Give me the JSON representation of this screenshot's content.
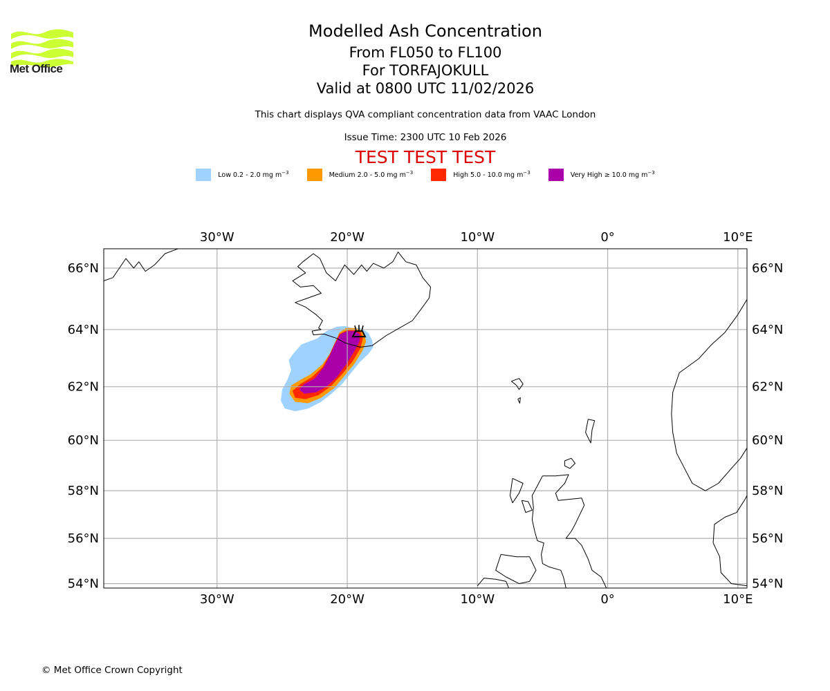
{
  "logo": {
    "text": "Met Office",
    "wave_color": "#ccff33"
  },
  "header": {
    "title": "Modelled Ash Concentration",
    "levels": "From FL050 to FL100",
    "volcano": "For TORFAJOKULL",
    "valid": "Valid at 0800 UTC 11/02/2026",
    "subtitle": "This chart displays QVA compliant concentration data from VAAC London",
    "issue_time": "Issue Time: 2300 UTC 10 Feb 2026",
    "test_banner": "TEST TEST TEST",
    "test_color": "#dd0000"
  },
  "legend": [
    {
      "label": "Low 0.2 - 2.0 mg m",
      "unit_exp": "−3",
      "color": "#a0d2ff"
    },
    {
      "label": "Medium 2.0 - 5.0 mg m",
      "unit_exp": "−3",
      "color": "#ff9900"
    },
    {
      "label": "High 5.0 - 10.0 mg m",
      "unit_exp": "−3",
      "color": "#ff2800"
    },
    {
      "label": "Very High  ≥  10.0 mg m",
      "unit_exp": "−3",
      "color": "#aa00aa"
    }
  ],
  "footer": {
    "copyright": "© Met Office Crown Copyright"
  },
  "chart_data": {
    "type": "heatmap",
    "projection": "mercator",
    "extent": {
      "lon": [
        -38.7,
        10.7
      ],
      "lat": [
        53.8,
        66.6
      ]
    },
    "grid": true,
    "x_ticks": [
      {
        "value": -30,
        "label": "30°W"
      },
      {
        "value": -20,
        "label": "20°W"
      },
      {
        "value": -10,
        "label": "10°W"
      },
      {
        "value": 0,
        "label": "0°"
      },
      {
        "value": 10,
        "label": "10°E"
      }
    ],
    "y_ticks": [
      {
        "value": 66,
        "label": "66°N"
      },
      {
        "value": 64,
        "label": "64°N"
      },
      {
        "value": 62,
        "label": "62°N"
      },
      {
        "value": 60,
        "label": "60°N"
      },
      {
        "value": 58,
        "label": "58°N"
      },
      {
        "value": 56,
        "label": "56°N"
      },
      {
        "value": 54,
        "label": "54°N"
      }
    ],
    "volcano": {
      "name": "TORFAJOKULL",
      "lon": -19.1,
      "lat": 63.9,
      "symbol": "volcano-icon"
    },
    "ash_levels": [
      {
        "level": "Low",
        "range": "0.2 - 2.0 mg m-3",
        "color": "#a0d2ff",
        "polygon": [
          [
            -19.6,
            64.05
          ],
          [
            -19.0,
            64.05
          ],
          [
            -18.4,
            63.9
          ],
          [
            -18.1,
            63.65
          ],
          [
            -18.0,
            63.4
          ],
          [
            -18.4,
            63.15
          ],
          [
            -19.0,
            62.9
          ],
          [
            -19.7,
            62.5
          ],
          [
            -20.4,
            62.1
          ],
          [
            -21.2,
            61.75
          ],
          [
            -22.0,
            61.45
          ],
          [
            -23.0,
            61.2
          ],
          [
            -24.0,
            61.1
          ],
          [
            -24.8,
            61.2
          ],
          [
            -25.1,
            61.5
          ],
          [
            -25.0,
            61.9
          ],
          [
            -24.6,
            62.25
          ],
          [
            -24.3,
            62.6
          ],
          [
            -24.5,
            62.95
          ],
          [
            -24.1,
            63.2
          ],
          [
            -23.5,
            63.5
          ],
          [
            -22.3,
            63.7
          ],
          [
            -21.6,
            63.95
          ],
          [
            -20.8,
            64.1
          ],
          [
            -20.2,
            64.12
          ]
        ]
      },
      {
        "level": "Medium",
        "range": "2.0 - 5.0 mg m-3",
        "color": "#ff9900",
        "polygon": [
          [
            -19.4,
            64.05
          ],
          [
            -19.0,
            64.0
          ],
          [
            -18.7,
            63.85
          ],
          [
            -18.55,
            63.6
          ],
          [
            -18.8,
            63.3
          ],
          [
            -19.4,
            62.85
          ],
          [
            -20.2,
            62.4
          ],
          [
            -21.0,
            61.95
          ],
          [
            -22.0,
            61.6
          ],
          [
            -23.0,
            61.4
          ],
          [
            -24.0,
            61.45
          ],
          [
            -24.45,
            61.75
          ],
          [
            -24.3,
            62.05
          ],
          [
            -23.6,
            62.25
          ],
          [
            -22.8,
            62.45
          ],
          [
            -21.9,
            62.8
          ],
          [
            -21.3,
            63.2
          ],
          [
            -20.9,
            63.6
          ],
          [
            -20.6,
            63.9
          ],
          [
            -20.1,
            64.05
          ]
        ]
      },
      {
        "level": "High",
        "range": "5.0 - 10.0 mg m-3",
        "color": "#ff2800",
        "polygon": [
          [
            -19.4,
            63.98
          ],
          [
            -19.0,
            63.95
          ],
          [
            -18.8,
            63.7
          ],
          [
            -19.0,
            63.35
          ],
          [
            -19.6,
            62.9
          ],
          [
            -20.4,
            62.45
          ],
          [
            -21.3,
            62.0
          ],
          [
            -22.2,
            61.7
          ],
          [
            -23.2,
            61.55
          ],
          [
            -24.0,
            61.6
          ],
          [
            -24.2,
            61.85
          ],
          [
            -23.6,
            62.1
          ],
          [
            -22.7,
            62.35
          ],
          [
            -21.9,
            62.7
          ],
          [
            -21.4,
            63.1
          ],
          [
            -21.0,
            63.5
          ],
          [
            -20.6,
            63.85
          ],
          [
            -20.0,
            63.98
          ]
        ]
      },
      {
        "level": "Very High",
        "range": ">= 10.0 mg m-3",
        "color": "#aa00aa",
        "polygon": [
          [
            -19.4,
            63.95
          ],
          [
            -19.05,
            63.85
          ],
          [
            -19.05,
            63.6
          ],
          [
            -19.4,
            63.3
          ],
          [
            -20.0,
            62.85
          ],
          [
            -20.8,
            62.35
          ],
          [
            -21.6,
            62.0
          ],
          [
            -22.4,
            61.8
          ],
          [
            -23.3,
            61.75
          ],
          [
            -23.7,
            61.9
          ],
          [
            -23.3,
            62.1
          ],
          [
            -22.5,
            62.3
          ],
          [
            -21.8,
            62.7
          ],
          [
            -21.3,
            63.15
          ],
          [
            -20.9,
            63.55
          ],
          [
            -20.5,
            63.85
          ],
          [
            -20.0,
            63.95
          ]
        ]
      }
    ],
    "coastlines": [
      {
        "name": "iceland",
        "points": [
          [
            -22.0,
            64.0
          ],
          [
            -22.7,
            63.95
          ],
          [
            -22.6,
            63.82
          ],
          [
            -21.8,
            63.85
          ],
          [
            -20.8,
            63.7
          ],
          [
            -20.2,
            63.55
          ],
          [
            -19.0,
            63.4
          ],
          [
            -18.1,
            63.45
          ],
          [
            -17.0,
            63.8
          ],
          [
            -16.0,
            64.05
          ],
          [
            -15.0,
            64.3
          ],
          [
            -14.3,
            64.7
          ],
          [
            -13.7,
            65.05
          ],
          [
            -13.6,
            65.4
          ],
          [
            -14.2,
            65.7
          ],
          [
            -14.7,
            66.1
          ],
          [
            -15.5,
            66.2
          ],
          [
            -16.1,
            66.5
          ],
          [
            -16.5,
            66.2
          ],
          [
            -17.2,
            66.0
          ],
          [
            -18.0,
            66.15
          ],
          [
            -18.5,
            65.9
          ],
          [
            -18.9,
            66.1
          ],
          [
            -19.5,
            65.8
          ],
          [
            -20.2,
            66.1
          ],
          [
            -20.9,
            65.6
          ],
          [
            -21.6,
            65.85
          ],
          [
            -22.1,
            66.3
          ],
          [
            -22.6,
            66.45
          ],
          [
            -23.4,
            66.2
          ],
          [
            -23.8,
            66.05
          ],
          [
            -23.2,
            65.85
          ],
          [
            -24.2,
            65.6
          ],
          [
            -23.6,
            65.4
          ],
          [
            -22.6,
            65.45
          ],
          [
            -22.0,
            65.2
          ],
          [
            -23.0,
            65.05
          ],
          [
            -24.0,
            64.9
          ],
          [
            -23.2,
            64.75
          ],
          [
            -22.4,
            64.5
          ],
          [
            -21.9,
            64.3
          ],
          [
            -22.2,
            64.05
          ],
          [
            -22.0,
            64.0
          ]
        ]
      },
      {
        "name": "greenland",
        "points": [
          [
            -38.7,
            65.6
          ],
          [
            -38.0,
            65.7
          ],
          [
            -37.5,
            66.0
          ],
          [
            -37.0,
            66.3
          ],
          [
            -36.4,
            66.0
          ],
          [
            -36.0,
            66.2
          ],
          [
            -35.5,
            65.9
          ],
          [
            -34.8,
            66.1
          ],
          [
            -34.0,
            66.45
          ],
          [
            -33.0,
            66.6
          ]
        ]
      },
      {
        "name": "faroes",
        "points": [
          [
            -7.4,
            62.2
          ],
          [
            -6.8,
            62.3
          ],
          [
            -6.5,
            62.1
          ],
          [
            -6.8,
            61.9
          ],
          [
            -7.0,
            62.05
          ],
          [
            -7.4,
            62.2
          ]
        ]
      },
      {
        "name": "faroes-south",
        "points": [
          [
            -6.9,
            61.55
          ],
          [
            -6.7,
            61.6
          ],
          [
            -6.75,
            61.4
          ],
          [
            -6.9,
            61.55
          ]
        ]
      },
      {
        "name": "shetland",
        "points": [
          [
            -1.5,
            60.8
          ],
          [
            -1.0,
            60.75
          ],
          [
            -1.2,
            60.4
          ],
          [
            -1.3,
            59.9
          ],
          [
            -1.5,
            60.1
          ],
          [
            -1.7,
            60.3
          ],
          [
            -1.5,
            60.8
          ]
        ]
      },
      {
        "name": "orkney",
        "points": [
          [
            -3.3,
            59.2
          ],
          [
            -2.8,
            59.3
          ],
          [
            -2.5,
            59.1
          ],
          [
            -2.9,
            58.9
          ],
          [
            -3.3,
            59.0
          ],
          [
            -3.3,
            59.2
          ]
        ]
      },
      {
        "name": "scotland",
        "points": [
          [
            -5.0,
            58.6
          ],
          [
            -4.0,
            58.6
          ],
          [
            -3.0,
            58.65
          ],
          [
            -3.3,
            58.3
          ],
          [
            -4.0,
            57.9
          ],
          [
            -3.8,
            57.6
          ],
          [
            -2.0,
            57.7
          ],
          [
            -1.8,
            57.4
          ],
          [
            -2.5,
            56.6
          ],
          [
            -2.8,
            56.3
          ],
          [
            -3.2,
            56.0
          ],
          [
            -2.5,
            56.0
          ],
          [
            -2.0,
            55.7
          ],
          [
            -1.5,
            55.1
          ],
          [
            -1.2,
            54.6
          ],
          [
            -0.5,
            54.3
          ],
          [
            -0.1,
            53.8
          ],
          [
            -3.2,
            53.8
          ],
          [
            -3.4,
            54.3
          ],
          [
            -3.6,
            54.6
          ],
          [
            -4.5,
            54.75
          ],
          [
            -5.0,
            54.9
          ],
          [
            -5.1,
            55.3
          ],
          [
            -4.9,
            55.8
          ],
          [
            -5.4,
            55.9
          ],
          [
            -5.6,
            56.3
          ],
          [
            -5.8,
            56.8
          ],
          [
            -5.7,
            57.3
          ],
          [
            -5.8,
            57.8
          ],
          [
            -5.3,
            58.3
          ],
          [
            -5.0,
            58.6
          ]
        ]
      },
      {
        "name": "hebrides",
        "points": [
          [
            -7.3,
            58.5
          ],
          [
            -6.5,
            58.3
          ],
          [
            -6.8,
            57.9
          ],
          [
            -7.3,
            57.5
          ],
          [
            -7.5,
            57.8
          ],
          [
            -7.3,
            58.5
          ]
        ]
      },
      {
        "name": "skye",
        "points": [
          [
            -6.6,
            57.6
          ],
          [
            -6.1,
            57.55
          ],
          [
            -5.8,
            57.2
          ],
          [
            -6.3,
            57.1
          ],
          [
            -6.6,
            57.6
          ]
        ]
      },
      {
        "name": "northern-ireland",
        "points": [
          [
            -8.2,
            55.3
          ],
          [
            -7.0,
            55.2
          ],
          [
            -6.0,
            55.2
          ],
          [
            -5.5,
            54.6
          ],
          [
            -6.0,
            54.1
          ],
          [
            -6.8,
            54.0
          ],
          [
            -7.8,
            54.3
          ],
          [
            -8.6,
            54.6
          ],
          [
            -8.2,
            55.3
          ]
        ]
      },
      {
        "name": "ireland-north",
        "points": [
          [
            -10.0,
            53.9
          ],
          [
            -9.5,
            54.25
          ],
          [
            -8.6,
            54.2
          ],
          [
            -7.8,
            54.1
          ],
          [
            -7.6,
            53.8
          ]
        ]
      },
      {
        "name": "norway",
        "points": [
          [
            10.7,
            65.0
          ],
          [
            10.0,
            64.5
          ],
          [
            9.0,
            63.9
          ],
          [
            8.0,
            63.5
          ],
          [
            7.0,
            63.0
          ],
          [
            5.5,
            62.5
          ],
          [
            5.0,
            61.8
          ],
          [
            4.9,
            61.0
          ],
          [
            5.0,
            60.3
          ],
          [
            5.3,
            59.5
          ],
          [
            5.8,
            59.0
          ],
          [
            6.5,
            58.3
          ],
          [
            7.5,
            58.0
          ],
          [
            8.5,
            58.3
          ],
          [
            9.5,
            58.9
          ],
          [
            10.2,
            59.3
          ],
          [
            10.7,
            59.7
          ]
        ]
      },
      {
        "name": "sweden-denmark",
        "points": [
          [
            10.7,
            57.8
          ],
          [
            10.5,
            57.6
          ],
          [
            9.9,
            57.1
          ],
          [
            9.0,
            56.9
          ],
          [
            8.2,
            56.6
          ],
          [
            8.1,
            55.8
          ],
          [
            8.6,
            55.2
          ],
          [
            8.7,
            54.5
          ],
          [
            9.5,
            54.0
          ],
          [
            10.7,
            53.9
          ]
        ]
      }
    ]
  }
}
